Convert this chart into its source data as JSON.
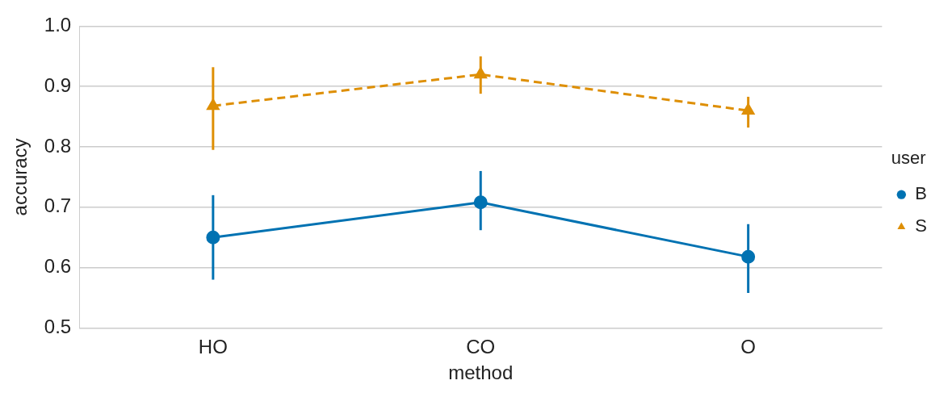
{
  "chart_data": {
    "type": "line",
    "xlabel": "method",
    "ylabel": "accuracy",
    "legend_title": "user",
    "categories": [
      "HO",
      "CO",
      "O"
    ],
    "series": [
      {
        "name": "B",
        "color": "#0072b2",
        "marker": "circle",
        "line_style": "solid",
        "values": [
          0.65,
          0.708,
          0.618
        ],
        "errors": [
          [
            0.58,
            0.72
          ],
          [
            0.662,
            0.76
          ],
          [
            0.558,
            0.672
          ]
        ]
      },
      {
        "name": "S",
        "color": "#de8f05",
        "marker": "triangle",
        "line_style": "dashed",
        "values": [
          0.868,
          0.92,
          0.86
        ],
        "errors": [
          [
            0.795,
            0.932
          ],
          [
            0.888,
            0.95
          ],
          [
            0.832,
            0.883
          ]
        ]
      }
    ],
    "ylim": [
      0.5,
      1.0
    ],
    "yticks": [
      {
        "value": 0.5,
        "label": "0.5"
      },
      {
        "value": 0.6,
        "label": "0.6"
      },
      {
        "value": 0.7,
        "label": "0.7"
      },
      {
        "value": 0.8,
        "label": "0.8"
      },
      {
        "value": 0.9,
        "label": "0.9"
      },
      {
        "value": 1,
        "label": "1.0"
      }
    ],
    "grid": "y",
    "legend": "right"
  }
}
